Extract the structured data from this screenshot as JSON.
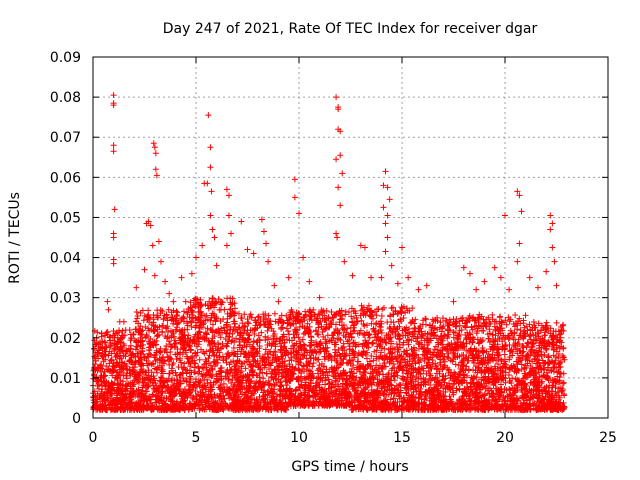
{
  "chart_data": {
    "type": "scatter",
    "title": "Day 247 of 2021, Rate Of TEC Index for receiver dgar",
    "xlabel": "GPS time / hours",
    "ylabel": "ROTI / TECUs",
    "xlim": [
      0,
      25
    ],
    "ylim": [
      0,
      0.09
    ],
    "x_ticks": [
      0,
      5,
      10,
      15,
      20,
      25
    ],
    "x_tick_labels": [
      "0",
      "5",
      "10",
      "15",
      "20",
      "25"
    ],
    "y_ticks": [
      0,
      0.01,
      0.02,
      0.03,
      0.04,
      0.05,
      0.06,
      0.07,
      0.08,
      0.09
    ],
    "y_tick_labels": [
      "0",
      "0.01",
      "0.02",
      "0.03",
      "0.04",
      "0.05",
      "0.06",
      "0.07",
      "0.08",
      "0.09"
    ],
    "grid": true,
    "marker": "+",
    "marker_color": "#ff0000",
    "series": [
      {
        "name": "ROTI",
        "points": [
          [
            1.0,
            0.0805
          ],
          [
            1.0,
            0.0785
          ],
          [
            1.0,
            0.078
          ],
          [
            1.0,
            0.068
          ],
          [
            1.0,
            0.0665
          ],
          [
            1.05,
            0.052
          ],
          [
            1.0,
            0.046
          ],
          [
            1.0,
            0.045
          ],
          [
            1.0,
            0.0395
          ],
          [
            1.0,
            0.0385
          ],
          [
            0.7,
            0.029
          ],
          [
            0.75,
            0.027
          ],
          [
            1.3,
            0.024
          ],
          [
            1.5,
            0.024
          ],
          [
            2.1,
            0.0325
          ],
          [
            2.5,
            0.037
          ],
          [
            2.6,
            0.0485
          ],
          [
            2.7,
            0.049
          ],
          [
            2.8,
            0.048
          ],
          [
            2.9,
            0.043
          ],
          [
            2.95,
            0.0685
          ],
          [
            3.0,
            0.0675
          ],
          [
            3.05,
            0.066
          ],
          [
            3.05,
            0.062
          ],
          [
            3.1,
            0.0605
          ],
          [
            3.0,
            0.0355
          ],
          [
            3.2,
            0.044
          ],
          [
            3.3,
            0.039
          ],
          [
            3.5,
            0.034
          ],
          [
            3.7,
            0.031
          ],
          [
            3.9,
            0.029
          ],
          [
            4.3,
            0.035
          ],
          [
            4.5,
            0.029
          ],
          [
            4.8,
            0.036
          ],
          [
            5.0,
            0.04
          ],
          [
            5.3,
            0.043
          ],
          [
            5.4,
            0.0585
          ],
          [
            5.55,
            0.0585
          ],
          [
            5.6,
            0.0755
          ],
          [
            5.7,
            0.0675
          ],
          [
            5.7,
            0.0625
          ],
          [
            5.75,
            0.0565
          ],
          [
            5.7,
            0.0505
          ],
          [
            5.8,
            0.047
          ],
          [
            5.9,
            0.045
          ],
          [
            6.0,
            0.038
          ],
          [
            6.5,
            0.057
          ],
          [
            6.6,
            0.0555
          ],
          [
            6.6,
            0.0505
          ],
          [
            6.7,
            0.046
          ],
          [
            6.5,
            0.043
          ],
          [
            7.2,
            0.049
          ],
          [
            7.5,
            0.042
          ],
          [
            7.8,
            0.041
          ],
          [
            8.2,
            0.0495
          ],
          [
            8.3,
            0.0465
          ],
          [
            8.4,
            0.0435
          ],
          [
            8.5,
            0.039
          ],
          [
            8.8,
            0.033
          ],
          [
            9.0,
            0.029
          ],
          [
            9.5,
            0.035
          ],
          [
            9.8,
            0.0595
          ],
          [
            9.8,
            0.055
          ],
          [
            10.0,
            0.051
          ],
          [
            10.2,
            0.04
          ],
          [
            10.5,
            0.034
          ],
          [
            11.0,
            0.03
          ],
          [
            11.8,
            0.08
          ],
          [
            11.9,
            0.0775
          ],
          [
            11.9,
            0.077
          ],
          [
            11.9,
            0.072
          ],
          [
            12.0,
            0.0715
          ],
          [
            12.0,
            0.0655
          ],
          [
            11.8,
            0.0645
          ],
          [
            12.1,
            0.061
          ],
          [
            11.9,
            0.0575
          ],
          [
            12.0,
            0.053
          ],
          [
            11.8,
            0.046
          ],
          [
            11.85,
            0.045
          ],
          [
            12.2,
            0.039
          ],
          [
            12.6,
            0.0355
          ],
          [
            13.0,
            0.043
          ],
          [
            13.2,
            0.0425
          ],
          [
            13.5,
            0.035
          ],
          [
            14.0,
            0.035
          ],
          [
            14.2,
            0.0615
          ],
          [
            14.1,
            0.058
          ],
          [
            14.3,
            0.0575
          ],
          [
            14.1,
            0.0525
          ],
          [
            14.4,
            0.0545
          ],
          [
            14.3,
            0.0505
          ],
          [
            14.2,
            0.0485
          ],
          [
            14.3,
            0.045
          ],
          [
            14.2,
            0.0415
          ],
          [
            14.5,
            0.038
          ],
          [
            14.8,
            0.0335
          ],
          [
            15.0,
            0.0425
          ],
          [
            15.3,
            0.035
          ],
          [
            15.8,
            0.032
          ],
          [
            16.2,
            0.033
          ],
          [
            17.5,
            0.029
          ],
          [
            18.0,
            0.0375
          ],
          [
            18.3,
            0.036
          ],
          [
            18.6,
            0.032
          ],
          [
            19.0,
            0.034
          ],
          [
            19.5,
            0.0375
          ],
          [
            19.8,
            0.035
          ],
          [
            20.0,
            0.0505
          ],
          [
            20.2,
            0.032
          ],
          [
            20.6,
            0.0565
          ],
          [
            20.7,
            0.0555
          ],
          [
            20.8,
            0.0515
          ],
          [
            20.7,
            0.0435
          ],
          [
            20.6,
            0.039
          ],
          [
            21.2,
            0.035
          ],
          [
            21.6,
            0.0325
          ],
          [
            22.0,
            0.0365
          ],
          [
            22.2,
            0.0505
          ],
          [
            22.3,
            0.0485
          ],
          [
            22.2,
            0.047
          ],
          [
            22.3,
            0.0425
          ],
          [
            22.4,
            0.039
          ],
          [
            22.5,
            0.033
          ],
          [
            22.8,
            0.023
          ]
        ]
      }
    ],
    "dense_band": {
      "x_range": [
        0,
        22.9
      ],
      "segments": [
        {
          "x_from": 0,
          "x_to": 2,
          "ymin": 0.002,
          "ymax": 0.022
        },
        {
          "x_from": 2,
          "x_to": 4.5,
          "ymin": 0.002,
          "ymax": 0.027
        },
        {
          "x_from": 4.5,
          "x_to": 7,
          "ymin": 0.002,
          "ymax": 0.03
        },
        {
          "x_from": 7,
          "x_to": 9.5,
          "ymin": 0.002,
          "ymax": 0.026
        },
        {
          "x_from": 9.5,
          "x_to": 12.5,
          "ymin": 0.003,
          "ymax": 0.027
        },
        {
          "x_from": 12.5,
          "x_to": 15.5,
          "ymin": 0.002,
          "ymax": 0.028
        },
        {
          "x_from": 15.5,
          "x_to": 18,
          "ymin": 0.002,
          "ymax": 0.025
        },
        {
          "x_from": 18,
          "x_to": 21,
          "ymin": 0.002,
          "ymax": 0.026
        },
        {
          "x_from": 21,
          "x_to": 22.9,
          "ymin": 0.002,
          "ymax": 0.024
        }
      ]
    }
  }
}
